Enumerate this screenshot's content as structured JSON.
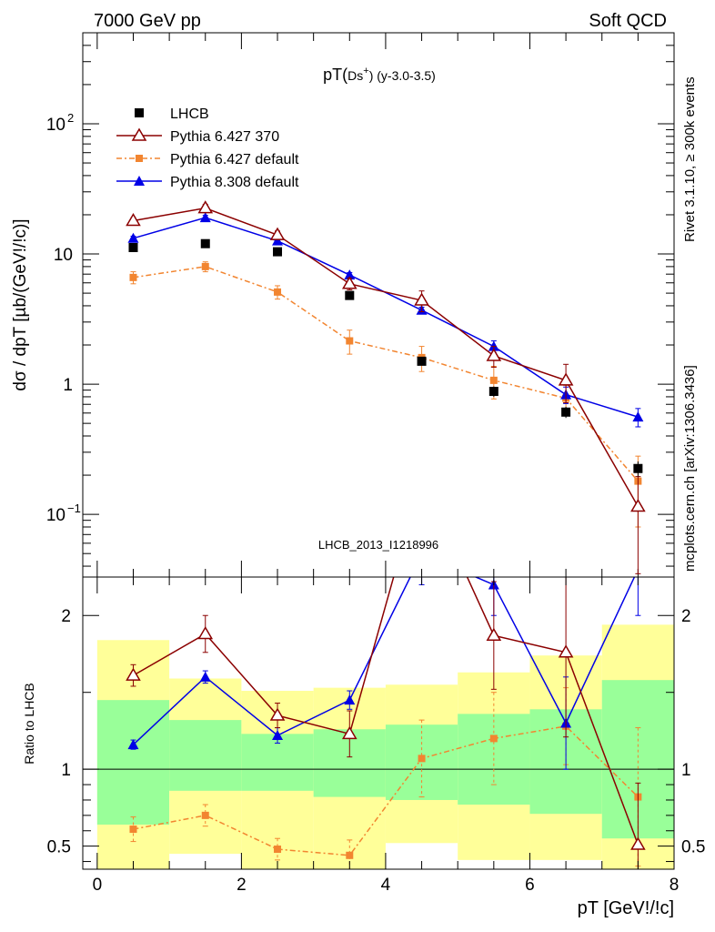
{
  "header": {
    "left": "7000 GeV pp",
    "right": "Soft QCD"
  },
  "side_labels": {
    "rivet": "Rivet 3.1.10, ≥ 300k events",
    "source": "mcplots.cern.ch [arXiv:1306.3436]"
  },
  "colors": {
    "lhcb": "#000000",
    "py6_370": "#8b0000",
    "py6_def": "#f28530",
    "py8": "#0000e6",
    "band_outer": "#ffff99",
    "band_inner": "#99ff99"
  },
  "chart_data": [
    {
      "type": "line",
      "title": "pT(Ds+) (y-3.0-3.5)",
      "ylabel": "dσ / dpT [µb/(GeV!/!c)]",
      "y_scale": "log",
      "ylim": [
        0.033,
        500
      ],
      "xlim": [
        -0.2,
        8
      ],
      "y_ticks": [
        "10^-1",
        "1",
        "10",
        "10^2"
      ],
      "watermark": "LHCB_2013_I1218996",
      "legend_position": "top-left",
      "x": [
        0.5,
        1.5,
        2.5,
        3.5,
        4.5,
        5.5,
        6.5,
        7.5
      ],
      "series": [
        {
          "name": "LHCB",
          "values": [
            11.2,
            12.0,
            10.4,
            4.8,
            1.5,
            0.88,
            0.61,
            0.225
          ],
          "errors": [
            0.7,
            0.7,
            0.6,
            0.3,
            0.1,
            0.08,
            0.06,
            0.03
          ]
        },
        {
          "name": "Pythia 6.427 370",
          "values": [
            18.0,
            22.5,
            14.0,
            5.9,
            4.4,
            1.65,
            1.07,
            0.115
          ],
          "errors": [
            1.0,
            1.5,
            1.0,
            0.6,
            0.8,
            0.3,
            0.35,
            0.08
          ]
        },
        {
          "name": "Pythia 6.427 default",
          "values": [
            6.6,
            8.0,
            5.1,
            2.15,
            1.6,
            1.07,
            0.78,
            0.18
          ],
          "errors": [
            0.7,
            0.7,
            0.6,
            0.45,
            0.35,
            0.3,
            0.2,
            0.1
          ]
        },
        {
          "name": "Pythia 8.308 default",
          "values": [
            13.2,
            19.0,
            12.6,
            6.9,
            3.7,
            1.95,
            0.83,
            0.56
          ],
          "errors": [
            0.5,
            0.8,
            0.7,
            0.3,
            0.2,
            0.2,
            0.12,
            0.09
          ]
        }
      ]
    },
    {
      "type": "line",
      "title": "",
      "ylabel": "Ratio to LHCB",
      "xlabel": "pT [GeV!/!c]",
      "ylim": [
        0.35,
        2.25
      ],
      "xlim": [
        -0.2,
        8
      ],
      "x_ticks": [
        0,
        2,
        4,
        6,
        8
      ],
      "y_ticks": [
        0.5,
        1,
        2
      ],
      "reference_line": 1,
      "bands": {
        "edges": [
          0,
          1,
          2,
          3,
          4,
          5,
          6,
          7,
          8
        ],
        "outer_low": [
          0.35,
          0.45,
          0.35,
          0.35,
          0.52,
          0.41,
          0.41,
          0.35
        ],
        "outer_high": [
          1.84,
          1.59,
          1.51,
          1.53,
          1.55,
          1.63,
          1.74,
          1.94
        ],
        "inner_low": [
          0.64,
          0.86,
          0.86,
          0.82,
          0.8,
          0.77,
          0.71,
          0.55
        ],
        "inner_high": [
          1.45,
          1.32,
          1.23,
          1.26,
          1.29,
          1.36,
          1.39,
          1.58
        ]
      },
      "x": [
        0.5,
        1.5,
        2.5,
        3.5,
        4.5,
        5.5,
        6.5,
        7.5
      ],
      "series": [
        {
          "name": "Pythia 6.427 370",
          "values": [
            1.61,
            1.88,
            1.35,
            1.23,
            2.9,
            1.87,
            1.76,
            0.51
          ],
          "errors": [
            0.07,
            0.12,
            0.08,
            0.15,
            0.3,
            0.35,
            0.55,
            0.4
          ]
        },
        {
          "name": "Pythia 6.427 default",
          "values": [
            0.61,
            0.7,
            0.48,
            0.44,
            1.07,
            1.2,
            1.28,
            0.82
          ],
          "errors": [
            0.08,
            0.07,
            0.07,
            0.1,
            0.25,
            0.3,
            0.25,
            0.45
          ]
        },
        {
          "name": "Pythia 8.308 default",
          "values": [
            1.16,
            1.6,
            1.22,
            1.45,
            2.4,
            2.2,
            1.3,
            2.3
          ],
          "errors": [
            0.03,
            0.04,
            0.05,
            0.06,
            0.2,
            0.2,
            0.3,
            0.3
          ]
        }
      ]
    }
  ]
}
